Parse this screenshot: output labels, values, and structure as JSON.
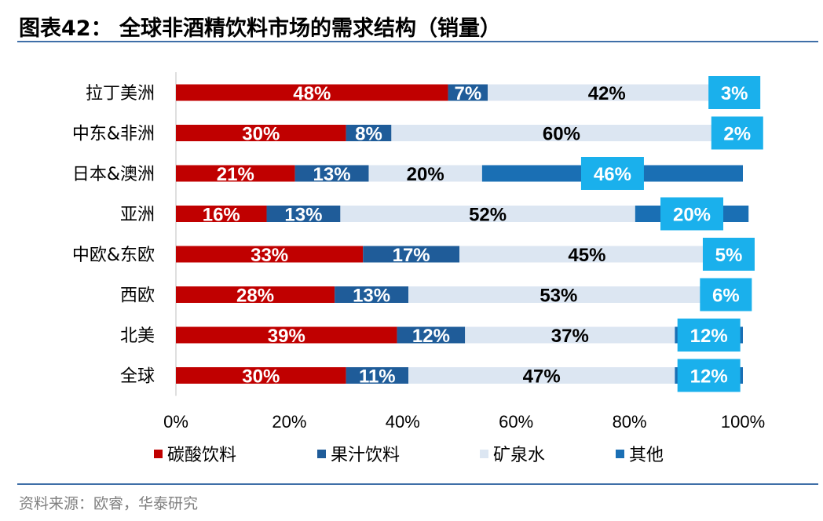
{
  "header": {
    "title": "图表42：  全球非酒精饮料市场的需求结构（销量）"
  },
  "footer": {
    "source": "资料来源：欧睿，华泰研究"
  },
  "chart_data": {
    "type": "bar",
    "orientation": "horizontal",
    "stacked": true,
    "title": "全球非酒精饮料市场的需求结构（销量）",
    "categories": [
      "拉丁美洲",
      "中东&非洲",
      "日本&澳洲",
      "亚洲",
      "中欧&东欧",
      "西欧",
      "北美",
      "全球"
    ],
    "series": [
      {
        "name": "碳酸饮料",
        "color": "#c00000",
        "values": [
          48,
          30,
          21,
          16,
          33,
          28,
          39,
          30
        ]
      },
      {
        "name": "果汁饮料",
        "color": "#1f5c99",
        "values": [
          7,
          8,
          13,
          13,
          17,
          13,
          12,
          11
        ]
      },
      {
        "name": "矿泉水",
        "color": "#dce6f2",
        "values": [
          42,
          60,
          20,
          52,
          45,
          53,
          37,
          47
        ]
      },
      {
        "name": "其他",
        "color": "#1a6fb4",
        "values": [
          3,
          2,
          46,
          20,
          5,
          6,
          12,
          12
        ]
      }
    ],
    "xlim": [
      0,
      100
    ],
    "xticks": [
      "0%",
      "20%",
      "40%",
      "60%",
      "80%",
      "100%"
    ],
    "value_suffix": "%",
    "label_box_color": "#1ab0ec",
    "legend": "bottom"
  }
}
